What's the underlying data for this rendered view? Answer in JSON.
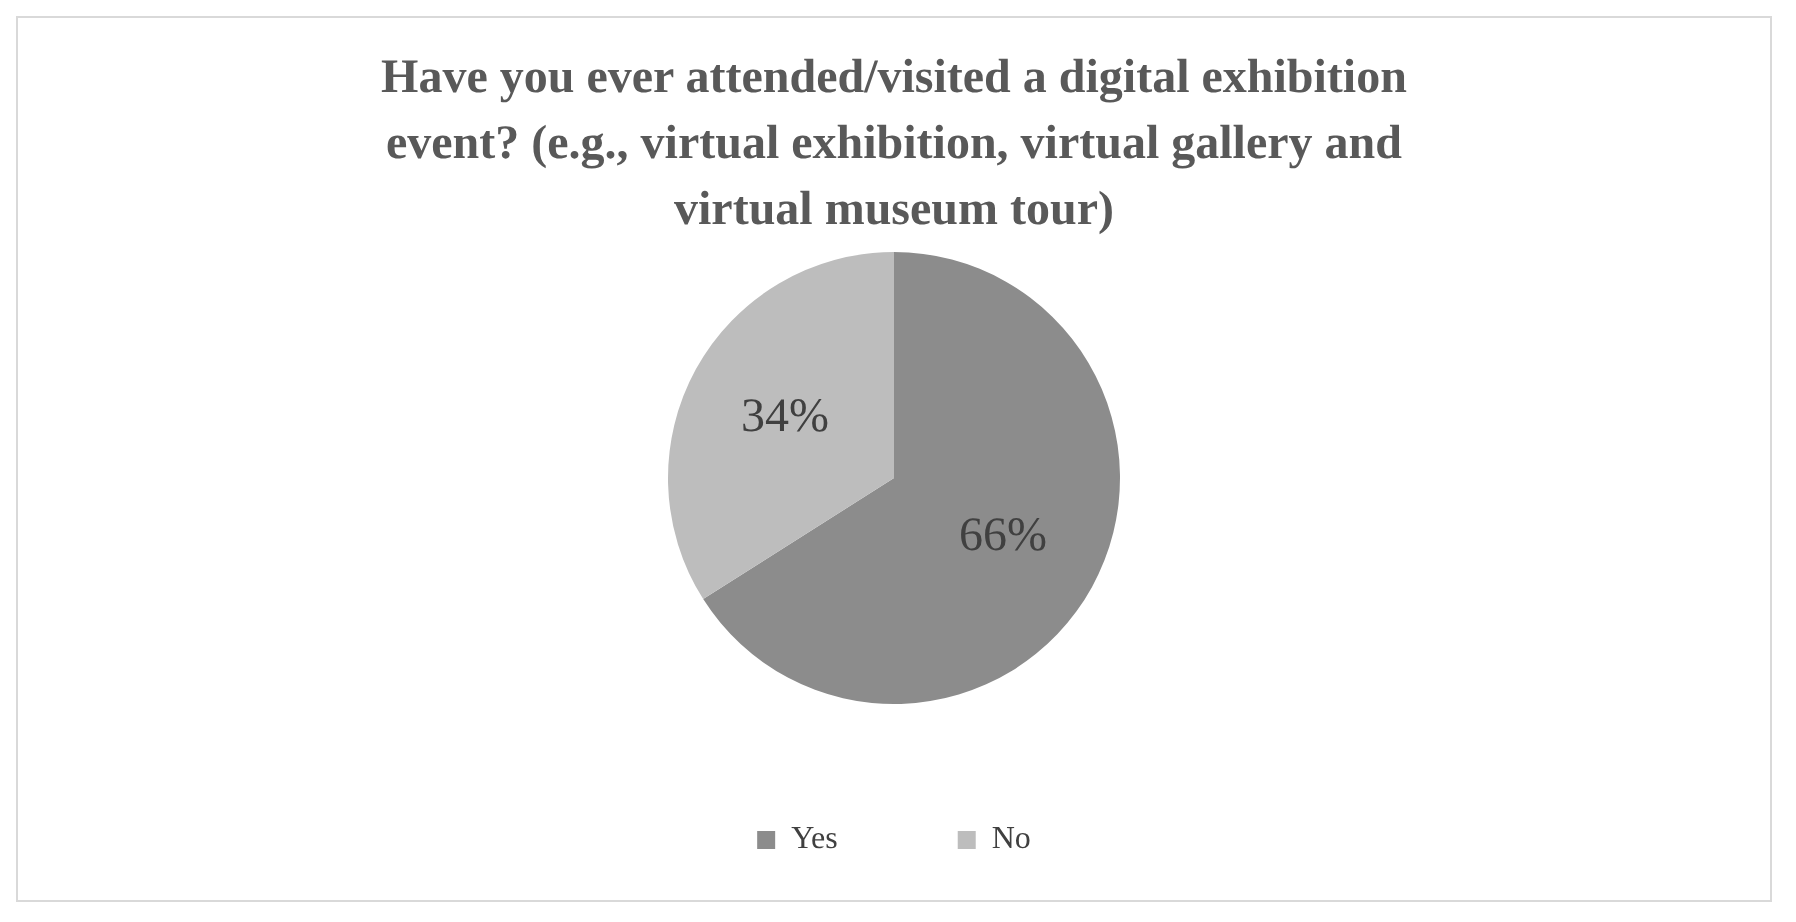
{
  "chart_data": {
    "type": "pie",
    "title": "Have you ever attended/visited a digital exhibition event? (e.g., virtual exhibition, virtual gallery and virtual museum tour)",
    "categories": [
      "Yes",
      "No"
    ],
    "values": [
      66,
      34
    ],
    "colors": [
      "#8c8c8c",
      "#bdbdbd"
    ],
    "value_labels": [
      "66%",
      "34%"
    ],
    "legend": "bottom"
  }
}
